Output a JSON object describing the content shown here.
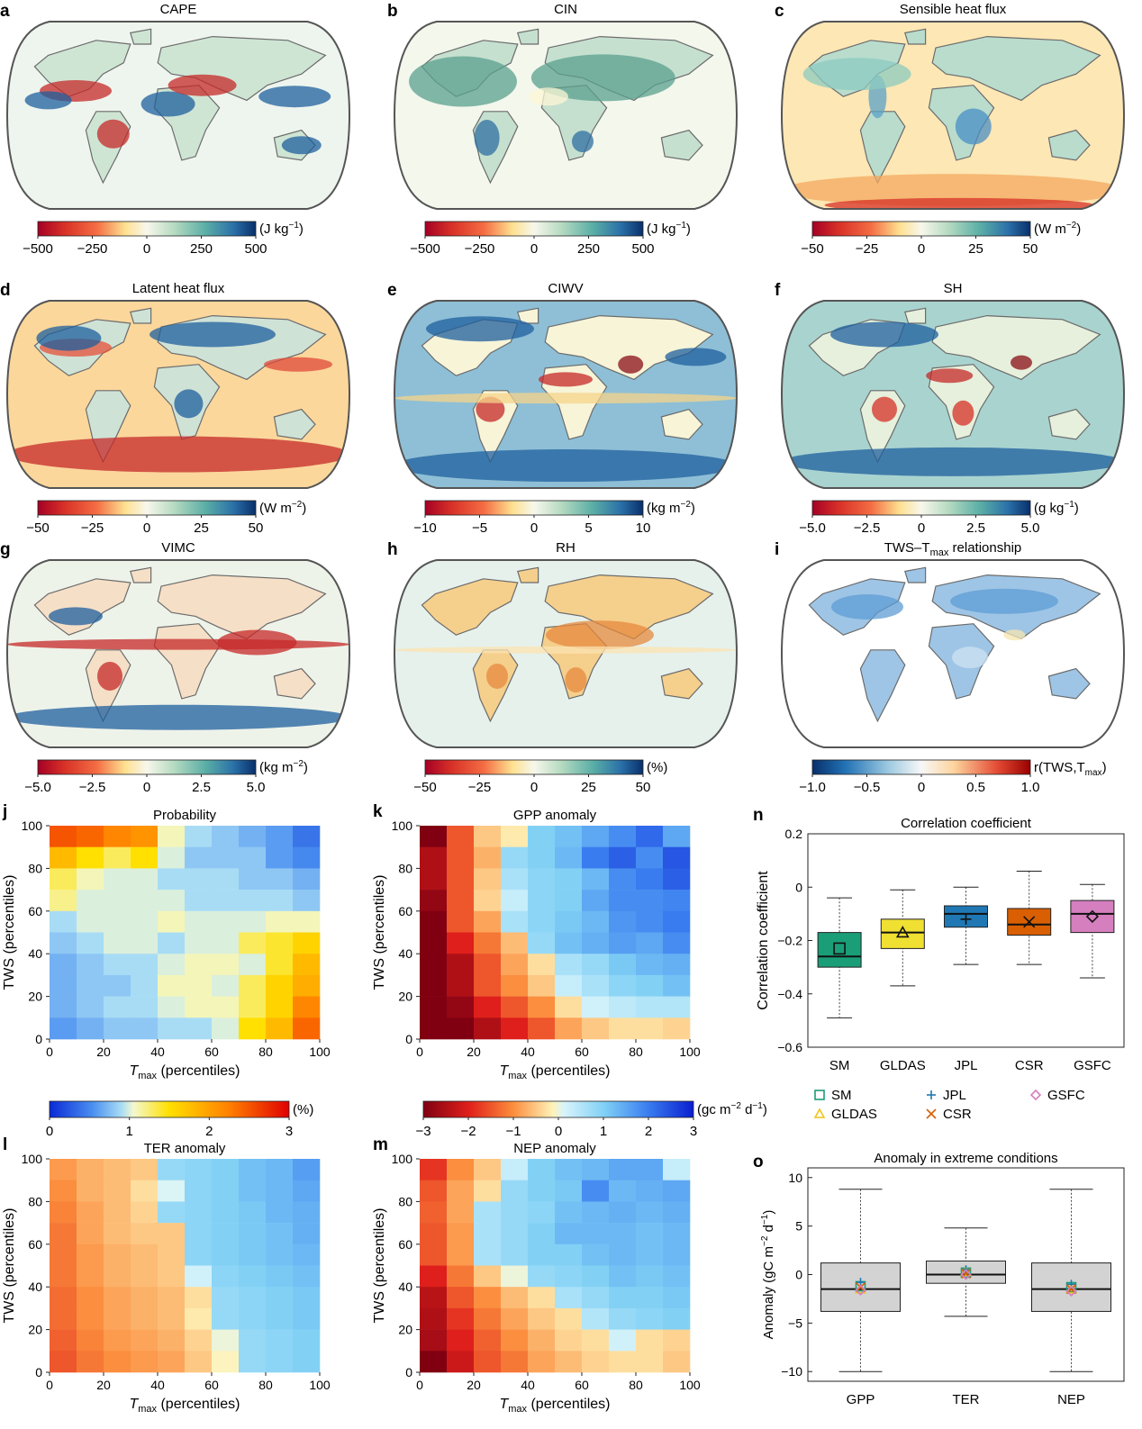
{
  "colors": {
    "map_outline": "#555555",
    "map_interior": "#e6f1ec",
    "land_outline": "#666666",
    "box_SM": "#1a9e77",
    "box_GLDAS": "#f0e032",
    "box_JPL": "#1f78b4",
    "box_CSR": "#d95f02",
    "box_GSFC": "#d67fbf",
    "box_grey": "#d3d3d3"
  },
  "maps": [
    {
      "letter": "a",
      "title": "CAPE",
      "unit": "(J kg",
      "unit_sup": "−1",
      "unit_end": ")",
      "ticks": [
        "−500",
        "−250",
        "0",
        "250",
        "500"
      ],
      "cmap": "div"
    },
    {
      "letter": "b",
      "title": "CIN",
      "unit": "(J kg",
      "unit_sup": "−1",
      "unit_end": ")",
      "ticks": [
        "−500",
        "−250",
        "0",
        "250",
        "500"
      ],
      "cmap": "div"
    },
    {
      "letter": "c",
      "title": "Sensible heat flux",
      "unit": "(W m",
      "unit_sup": "−2",
      "unit_end": ")",
      "ticks": [
        "−50",
        "−25",
        "0",
        "25",
        "50"
      ],
      "cmap": "div"
    },
    {
      "letter": "d",
      "title": "Latent heat flux",
      "unit": "(W m",
      "unit_sup": "−2",
      "unit_end": ")",
      "ticks": [
        "−50",
        "−25",
        "0",
        "25",
        "50"
      ],
      "cmap": "div"
    },
    {
      "letter": "e",
      "title": "CIWV",
      "unit": "(kg m",
      "unit_sup": "−2",
      "unit_end": ")",
      "ticks": [
        "−10",
        "−5",
        "0",
        "5",
        "10"
      ],
      "cmap": "div"
    },
    {
      "letter": "f",
      "title": "SH",
      "unit": "(g kg",
      "unit_sup": "−1",
      "unit_end": ")",
      "ticks": [
        "−5.0",
        "−2.5",
        "0",
        "2.5",
        "5.0"
      ],
      "cmap": "div"
    },
    {
      "letter": "g",
      "title": "VIMC",
      "unit": "(kg m",
      "unit_sup": "−2",
      "unit_end": ")",
      "ticks": [
        "−5.0",
        "−2.5",
        "0",
        "2.5",
        "5.0"
      ],
      "cmap": "div"
    },
    {
      "letter": "h",
      "title": "RH",
      "unit": "(%)",
      "unit_sup": "",
      "unit_end": "",
      "ticks": [
        "−50",
        "−25",
        "0",
        "25",
        "50"
      ],
      "cmap": "div"
    },
    {
      "letter": "i",
      "title": "TWS–T",
      "title_sub": "max",
      "title_end": " relationship",
      "unit": "r(TWS,T",
      "unit_sup": "",
      "unit_sub": "max",
      "unit_end": ")",
      "ticks": [
        "−1.0",
        "−0.5",
        "0",
        "0.5",
        "1.0"
      ],
      "cmap": "rev"
    }
  ],
  "heatmap_axes": {
    "ylabel": "TWS (percentiles)",
    "xlabel_main": "T",
    "xlabel_sub": "max",
    "xlabel_end": " (percentiles)",
    "x_ticks": [
      "0",
      "20",
      "40",
      "60",
      "80",
      "100"
    ],
    "y_ticks": [
      "0",
      "20",
      "40",
      "60",
      "80",
      "100"
    ]
  },
  "colorbar_j": {
    "ticks": [
      "0",
      "1",
      "2",
      "3"
    ],
    "unit": "(%)"
  },
  "colorbar_k": {
    "ticks": [
      "−3",
      "−2",
      "−1",
      "0",
      "1",
      "2",
      "3"
    ],
    "unit": "(gc m",
    "unit_sup": "−2",
    "unit_end": " d",
    "unit_sup2": "−1",
    "unit_end2": ")"
  },
  "panel_n": {
    "letter": "n",
    "title": "Correlation coefficient",
    "ylabel": "Correlation coefficient",
    "y_ticks": [
      "0.2",
      "0",
      "−0.2",
      "−0.4",
      "−0.6"
    ]
  },
  "legend": {
    "items": [
      {
        "label": "SM",
        "marker": "square",
        "color": "#1a9e77"
      },
      {
        "label": "JPL",
        "marker": "plus",
        "color": "#1f78b4"
      },
      {
        "label": "GSFC",
        "marker": "diamond",
        "color": "#d67fbf"
      },
      {
        "label": "GLDAS",
        "marker": "triangle",
        "color": "#f0c419"
      },
      {
        "label": "CSR",
        "marker": "cross",
        "color": "#d95f02"
      }
    ]
  },
  "panel_o": {
    "letter": "o",
    "title": "Anomaly in extreme conditions",
    "ylabel": "Anomaly (gC m",
    "ylabel_sup": "−2",
    "ylabel_mid": " d",
    "ylabel_sup2": "−1",
    "ylabel_end": ")",
    "y_ticks": [
      "10",
      "5",
      "0",
      "−5",
      "−10"
    ]
  },
  "chart_data": [
    {
      "type": "heatmap",
      "id": "j",
      "title": "Probability",
      "xlabel": "Tmax (percentiles)",
      "ylabel": "TWS (percentiles)",
      "xlim": [
        0,
        100
      ],
      "ylim": [
        0,
        100
      ],
      "vmin": 0,
      "vmax": 3,
      "unit": "%",
      "rows_top_to_bottom": [
        [
          2.5,
          2.4,
          2.2,
          2.1,
          1.1,
          0.9,
          0.8,
          0.7,
          0.6,
          0.4
        ],
        [
          1.8,
          1.5,
          1.3,
          1.5,
          1.0,
          0.8,
          0.8,
          0.8,
          0.6,
          0.5
        ],
        [
          1.3,
          1.1,
          1.0,
          1.0,
          0.9,
          0.9,
          0.9,
          0.8,
          0.8,
          0.7
        ],
        [
          1.2,
          1.0,
          1.0,
          1.0,
          1.0,
          0.9,
          0.9,
          0.9,
          0.9,
          0.8
        ],
        [
          0.9,
          1.0,
          1.0,
          1.0,
          1.1,
          1.0,
          1.0,
          1.0,
          1.1,
          1.1
        ],
        [
          0.8,
          0.9,
          1.0,
          1.0,
          0.9,
          1.0,
          1.0,
          1.3,
          1.4,
          1.6
        ],
        [
          0.7,
          0.8,
          0.9,
          0.9,
          1.0,
          1.1,
          1.1,
          1.0,
          1.4,
          1.8
        ],
        [
          0.7,
          0.8,
          0.8,
          0.9,
          1.1,
          1.1,
          1.0,
          1.3,
          1.6,
          1.9
        ],
        [
          0.7,
          0.8,
          0.9,
          0.9,
          1.0,
          1.1,
          1.1,
          1.3,
          1.6,
          2.2
        ],
        [
          0.6,
          0.7,
          0.8,
          0.8,
          0.9,
          0.9,
          1.0,
          1.5,
          1.8,
          2.4
        ]
      ]
    },
    {
      "type": "heatmap",
      "id": "k",
      "title": "GPP anomaly",
      "xlabel": "Tmax (percentiles)",
      "ylabel": "TWS (percentiles)",
      "xlim": [
        0,
        100
      ],
      "ylim": [
        0,
        100
      ],
      "vmin": -3,
      "vmax": 3,
      "unit": "gc m-2 d-1",
      "rows_top_to_bottom": [
        [
          -3.0,
          -1.5,
          -0.5,
          -0.2,
          1.0,
          1.2,
          1.5,
          1.8,
          2.2,
          1.5
        ],
        [
          -2.5,
          -1.5,
          -0.7,
          0.8,
          1.0,
          1.3,
          2.0,
          2.3,
          1.8,
          2.4
        ],
        [
          -2.5,
          -1.5,
          -0.5,
          0.6,
          0.9,
          1.0,
          1.3,
          1.8,
          2.0,
          2.3
        ],
        [
          -2.8,
          -1.5,
          -0.4,
          0.3,
          0.9,
          1.0,
          1.5,
          1.8,
          1.8,
          1.9
        ],
        [
          -3.0,
          -1.5,
          -0.8,
          0.6,
          0.9,
          1.1,
          1.3,
          1.7,
          1.8,
          2.0
        ],
        [
          -3.0,
          -2.0,
          -1.2,
          -0.6,
          0.8,
          1.2,
          1.4,
          1.6,
          1.5,
          1.8
        ],
        [
          -3.0,
          -2.5,
          -1.5,
          -0.8,
          -0.3,
          0.6,
          0.8,
          1.1,
          1.3,
          1.4
        ],
        [
          -3.0,
          -2.5,
          -1.5,
          -1.0,
          -0.5,
          0.3,
          0.6,
          0.9,
          1.0,
          1.2
        ],
        [
          -3.0,
          -2.8,
          -2.0,
          -1.5,
          -1.0,
          -0.3,
          0.2,
          0.4,
          0.5,
          0.5
        ],
        [
          -3.0,
          -3.0,
          -2.5,
          -2.0,
          -1.5,
          -0.8,
          -0.5,
          -0.3,
          -0.3,
          -0.4
        ]
      ]
    },
    {
      "type": "heatmap",
      "id": "l",
      "title": "TER anomaly",
      "xlabel": "Tmax (percentiles)",
      "ylabel": "TWS (percentiles)",
      "xlim": [
        0,
        100
      ],
      "ylim": [
        0,
        100
      ],
      "vmin": -3,
      "vmax": 3,
      "unit": "gc m-2 d-1",
      "rows_top_to_bottom": [
        [
          -0.9,
          -0.7,
          -0.6,
          -0.5,
          0.8,
          0.9,
          1.0,
          1.2,
          1.3,
          1.6
        ],
        [
          -1.0,
          -0.7,
          -0.6,
          -0.3,
          0.1,
          0.9,
          1.0,
          1.2,
          1.3,
          1.5
        ],
        [
          -1.1,
          -0.8,
          -0.6,
          -0.4,
          0.8,
          0.9,
          1.0,
          1.1,
          1.3,
          1.4
        ],
        [
          -1.2,
          -0.8,
          -0.6,
          -0.5,
          -0.5,
          0.9,
          1.0,
          1.1,
          1.2,
          1.4
        ],
        [
          -1.2,
          -0.9,
          -0.7,
          -0.6,
          -0.5,
          0.9,
          1.0,
          1.1,
          1.2,
          1.3
        ],
        [
          -1.2,
          -0.9,
          -0.7,
          -0.6,
          -0.5,
          0.2,
          0.9,
          1.0,
          1.1,
          1.2
        ],
        [
          -1.3,
          -1.0,
          -0.8,
          -0.7,
          -0.6,
          -0.3,
          0.8,
          0.9,
          1.0,
          1.1
        ],
        [
          -1.3,
          -1.0,
          -0.8,
          -0.7,
          -0.6,
          -0.2,
          0.8,
          0.9,
          1.0,
          1.1
        ],
        [
          -1.4,
          -1.1,
          -0.9,
          -0.8,
          -0.7,
          -0.4,
          0.0,
          0.8,
          0.9,
          1.0
        ],
        [
          -1.5,
          -1.2,
          -1.0,
          -0.9,
          -0.8,
          -0.5,
          -0.1,
          0.8,
          0.9,
          1.0
        ]
      ]
    },
    {
      "type": "heatmap",
      "id": "m",
      "title": "NEP anomaly",
      "xlabel": "Tmax (percentiles)",
      "ylabel": "TWS (percentiles)",
      "xlim": [
        0,
        100
      ],
      "ylim": [
        0,
        100
      ],
      "vmin": -3,
      "vmax": 3,
      "unit": "gc m-2 d-1",
      "rows_top_to_bottom": [
        [
          -1.8,
          -1.0,
          -0.5,
          0.3,
          1.0,
          1.2,
          1.3,
          1.5,
          1.5,
          0.3
        ],
        [
          -1.5,
          -0.8,
          -0.3,
          0.8,
          1.0,
          1.1,
          1.8,
          1.3,
          1.4,
          1.5
        ],
        [
          -1.4,
          -0.8,
          0.6,
          0.8,
          0.9,
          1.2,
          1.3,
          1.4,
          1.3,
          1.4
        ],
        [
          -1.5,
          -0.9,
          0.6,
          0.8,
          1.0,
          1.3,
          1.3,
          1.3,
          1.2,
          1.3
        ],
        [
          -1.5,
          -0.9,
          0.6,
          0.8,
          1.0,
          1.0,
          1.2,
          1.3,
          1.2,
          1.3
        ],
        [
          -2.0,
          -1.2,
          -0.5,
          0.0,
          0.8,
          0.9,
          1.0,
          1.2,
          1.1,
          1.2
        ],
        [
          -2.4,
          -1.5,
          -1.0,
          -0.6,
          -0.3,
          0.6,
          0.8,
          1.0,
          1.0,
          1.1
        ],
        [
          -2.5,
          -1.8,
          -1.2,
          -0.8,
          -0.5,
          -0.3,
          0.5,
          0.8,
          0.9,
          1.0
        ],
        [
          -2.6,
          -2.0,
          -1.4,
          -1.0,
          -0.7,
          -0.4,
          -0.3,
          0.2,
          -0.3,
          -0.4
        ],
        [
          -3.0,
          -2.2,
          -1.5,
          -1.2,
          -0.8,
          -0.6,
          -0.4,
          -0.3,
          -0.3,
          -0.5
        ]
      ]
    },
    {
      "type": "box",
      "id": "n",
      "title": "Correlation coefficient",
      "ylabel": "Correlation coefficient",
      "ylim": [
        -0.6,
        0.2
      ],
      "categories": [
        "SM",
        "GLDAS",
        "JPL",
        "CSR",
        "GSFC"
      ],
      "boxes": [
        {
          "name": "SM",
          "whisker_low": -0.49,
          "q1": -0.3,
          "median": -0.26,
          "q3": -0.17,
          "whisker_high": -0.04,
          "mean": -0.23,
          "color": "#1a9e77",
          "marker": "square"
        },
        {
          "name": "GLDAS",
          "whisker_low": -0.37,
          "q1": -0.23,
          "median": -0.17,
          "q3": -0.12,
          "whisker_high": -0.01,
          "mean": -0.17,
          "color": "#f0e032",
          "marker": "triangle"
        },
        {
          "name": "JPL",
          "whisker_low": -0.29,
          "q1": -0.15,
          "median": -0.1,
          "q3": -0.07,
          "whisker_high": 0.0,
          "mean": -0.12,
          "color": "#1f78b4",
          "marker": "plus"
        },
        {
          "name": "CSR",
          "whisker_low": -0.29,
          "q1": -0.18,
          "median": -0.14,
          "q3": -0.08,
          "whisker_high": 0.06,
          "mean": -0.13,
          "color": "#d95f02",
          "marker": "cross"
        },
        {
          "name": "GSFC",
          "whisker_low": -0.34,
          "q1": -0.17,
          "median": -0.1,
          "q3": -0.05,
          "whisker_high": 0.01,
          "mean": -0.11,
          "color": "#d67fbf",
          "marker": "diamond"
        }
      ]
    },
    {
      "type": "box",
      "id": "o",
      "title": "Anomaly in extreme conditions",
      "ylabel": "Anomaly (gC m-2 d-1)",
      "ylim": [
        -11,
        11
      ],
      "categories": [
        "GPP",
        "TER",
        "NEP"
      ],
      "boxes": [
        {
          "name": "GPP",
          "whisker_low": -10,
          "q1": -3.8,
          "median": -1.5,
          "q3": 1.2,
          "whisker_high": 8.8,
          "means": {
            "SM": -1.2,
            "GLDAS": -1.5,
            "JPL": -0.8,
            "CSR": -1.3,
            "GSFC": -1.6
          }
        },
        {
          "name": "TER",
          "whisker_low": -4.3,
          "q1": -0.9,
          "median": 0.0,
          "q3": 1.4,
          "whisker_high": 4.8,
          "means": {
            "SM": 0.2,
            "GLDAS": 0.3,
            "JPL": 0.5,
            "CSR": 0.1,
            "GSFC": 0.0
          }
        },
        {
          "name": "NEP",
          "whisker_low": -10,
          "q1": -3.8,
          "median": -1.5,
          "q3": 1.2,
          "whisker_high": 8.8,
          "means": {
            "SM": -1.3,
            "GLDAS": -1.5,
            "JPL": -1.0,
            "CSR": -1.5,
            "GSFC": -1.7
          }
        }
      ]
    }
  ]
}
